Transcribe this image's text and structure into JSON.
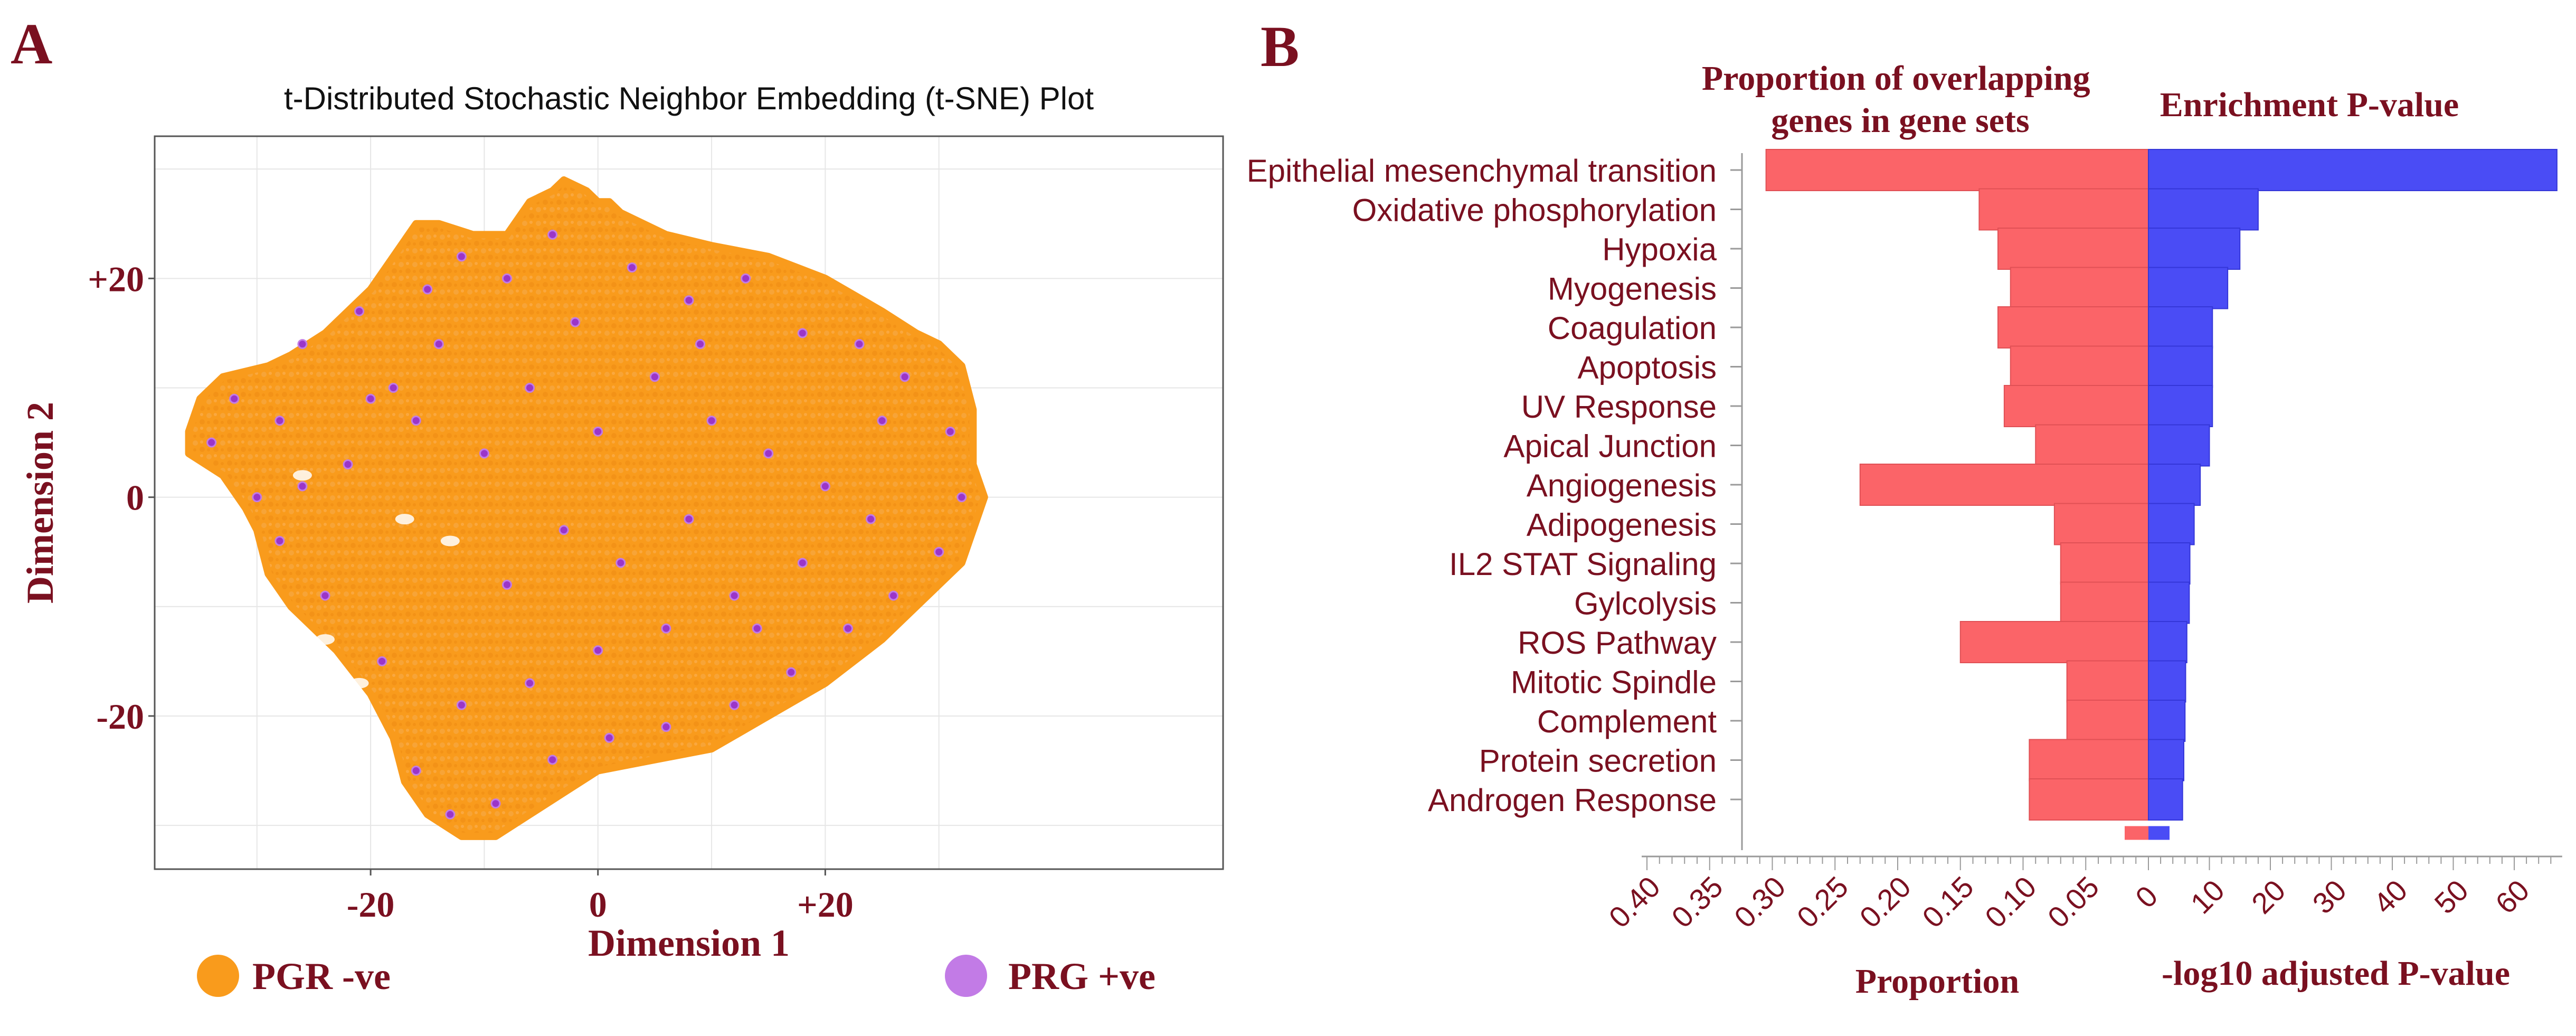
{
  "figure": {
    "panel_a_letter": "A",
    "panel_b_letter": "B",
    "colors": {
      "label": "#7a1020",
      "pgr_neg": "#f99b1c",
      "prg_pos": "#c27be6",
      "prg_pos_dot": "#9b35c8",
      "proportion_bar": "#fb6468",
      "pvalue_bar": "#4a4cf5"
    }
  },
  "chart_data": [
    {
      "type": "scatter",
      "title": "t-Distributed Stochastic Neighbor Embedding (t-SNE) Plot",
      "xlabel": "Dimension 1",
      "ylabel": "Dimension 2",
      "xlim": [
        -39,
        55
      ],
      "ylim": [
        -34,
        33
      ],
      "x_ticks": [
        {
          "value": -20,
          "label": "-20"
        },
        {
          "value": 0,
          "label": "0"
        },
        {
          "value": 20,
          "label": "+20"
        }
      ],
      "y_ticks": [
        {
          "value": 20,
          "label": "+20"
        },
        {
          "value": 0,
          "label": "0"
        },
        {
          "value": -20,
          "label": "-20"
        }
      ],
      "grid": true,
      "legend": [
        {
          "name": "PGR -ve",
          "color": "#f99b1c"
        },
        {
          "name": "PRG +ve",
          "color": "#c27be6"
        }
      ],
      "legend_position": "bottom",
      "series": [
        {
          "name": "PGR -ve",
          "color": "#f99b1c",
          "cloud": true,
          "boundary": [
            [
              -35,
              9
            ],
            [
              -33,
              11
            ],
            [
              -29,
              12
            ],
            [
              -27,
              13
            ],
            [
              -24,
              15
            ],
            [
              -23,
              16
            ],
            [
              -20,
              19
            ],
            [
              -18,
              22
            ],
            [
              -16,
              25
            ],
            [
              -14,
              25
            ],
            [
              -11,
              24
            ],
            [
              -8,
              24
            ],
            [
              -6,
              27
            ],
            [
              -4,
              28
            ],
            [
              -3,
              29
            ],
            [
              -1,
              28
            ],
            [
              0,
              27
            ],
            [
              1,
              27
            ],
            [
              2,
              26
            ],
            [
              6,
              24
            ],
            [
              10,
              23
            ],
            [
              15,
              22
            ],
            [
              20,
              20
            ],
            [
              25,
              17
            ],
            [
              28,
              15
            ],
            [
              30,
              14
            ],
            [
              32,
              12
            ],
            [
              33,
              8
            ],
            [
              33,
              3
            ],
            [
              34,
              0
            ],
            [
              33,
              -3
            ],
            [
              32,
              -6
            ],
            [
              29,
              -9
            ],
            [
              25,
              -13
            ],
            [
              20,
              -17
            ],
            [
              15,
              -20
            ],
            [
              10,
              -23
            ],
            [
              5,
              -24
            ],
            [
              0,
              -25
            ],
            [
              -3,
              -27
            ],
            [
              -6,
              -29
            ],
            [
              -9,
              -31
            ],
            [
              -12,
              -31
            ],
            [
              -15,
              -29
            ],
            [
              -17,
              -26
            ],
            [
              -18,
              -22
            ],
            [
              -20,
              -18
            ],
            [
              -23,
              -14
            ],
            [
              -27,
              -10
            ],
            [
              -29,
              -7
            ],
            [
              -30,
              -3
            ],
            [
              -31,
              -1
            ],
            [
              -33,
              2
            ],
            [
              -36,
              4
            ],
            [
              -36,
              6
            ]
          ],
          "notches": [
            [
              -26,
              2
            ],
            [
              -17,
              -2
            ],
            [
              -13,
              -4
            ],
            [
              -24,
              -13
            ],
            [
              -21,
              -17
            ]
          ]
        },
        {
          "name": "PRG +ve",
          "color": "#9b35c8",
          "points": [
            [
              -34,
              5
            ],
            [
              -32,
              9
            ],
            [
              -28,
              7
            ],
            [
              -26,
              14
            ],
            [
              -21,
              17
            ],
            [
              -18,
              10
            ],
            [
              -15,
              19
            ],
            [
              -12,
              22
            ],
            [
              -8,
              20
            ],
            [
              -4,
              24
            ],
            [
              -2,
              16
            ],
            [
              3,
              21
            ],
            [
              8,
              18
            ],
            [
              13,
              20
            ],
            [
              18,
              15
            ],
            [
              23,
              14
            ],
            [
              27,
              11
            ],
            [
              31,
              6
            ],
            [
              32,
              0
            ],
            [
              30,
              -5
            ],
            [
              26,
              -9
            ],
            [
              22,
              -12
            ],
            [
              17,
              -16
            ],
            [
              12,
              -19
            ],
            [
              6,
              -21
            ],
            [
              1,
              -22
            ],
            [
              -4,
              -24
            ],
            [
              -9,
              -28
            ],
            [
              -13,
              -29
            ],
            [
              -16,
              -25
            ],
            [
              -19,
              -15
            ],
            [
              -24,
              -9
            ],
            [
              -28,
              -4
            ],
            [
              -30,
              0
            ],
            [
              -22,
              3
            ],
            [
              -16,
              7
            ],
            [
              -10,
              4
            ],
            [
              -6,
              10
            ],
            [
              0,
              6
            ],
            [
              5,
              11
            ],
            [
              10,
              7
            ],
            [
              15,
              4
            ],
            [
              20,
              1
            ],
            [
              24,
              -2
            ],
            [
              18,
              -6
            ],
            [
              12,
              -9
            ],
            [
              6,
              -12
            ],
            [
              0,
              -14
            ],
            [
              -6,
              -17
            ],
            [
              -12,
              -19
            ],
            [
              -8,
              -8
            ],
            [
              -3,
              -3
            ],
            [
              2,
              -6
            ],
            [
              8,
              -2
            ],
            [
              14,
              -12
            ],
            [
              -14,
              14
            ],
            [
              -20,
              9
            ],
            [
              -26,
              1
            ],
            [
              25,
              7
            ],
            [
              9,
              14
            ]
          ]
        }
      ]
    },
    {
      "type": "bar",
      "orientation": "horizontal",
      "header_left": "Proportion of overlapping genes in gene sets",
      "header_right": "Enrichment P-value",
      "categories": [
        "Epithelial mesenchymal transition",
        "Oxidative phosphorylation",
        "Hypoxia",
        "Myogenesis",
        "Coagulation",
        "Apoptosis",
        "UV Response",
        "Apical Junction",
        "Angiogenesis",
        "Adipogenesis",
        "IL2 STAT Signaling",
        "Gylcolysis",
        "ROS Pathway",
        "Mitotic Spindle",
        "Complement",
        "Protein secretion",
        "Androgen Response"
      ],
      "series": [
        {
          "name": "Proportion",
          "color": "#fb6468",
          "values": [
            0.305,
            0.135,
            0.12,
            0.11,
            0.12,
            0.11,
            0.115,
            0.09,
            0.23,
            0.075,
            0.07,
            0.07,
            0.15,
            0.065,
            0.065,
            0.095,
            0.095
          ]
        },
        {
          "name": "-log10 adjusted P-value",
          "color": "#4a4cf5",
          "values": [
            67,
            18,
            15,
            13,
            10.5,
            10.5,
            10.5,
            10,
            8.5,
            7.5,
            6.8,
            6.7,
            6.3,
            6.1,
            6,
            5.8,
            5.6
          ]
        }
      ],
      "left_axis": {
        "label": "Proportion",
        "range": [
          0,
          0.4
        ],
        "ticks": [
          {
            "value": 0.4,
            "label": "0.40"
          },
          {
            "value": 0.35,
            "label": "0.35"
          },
          {
            "value": 0.3,
            "label": "0.30"
          },
          {
            "value": 0.25,
            "label": "0.25"
          },
          {
            "value": 0.2,
            "label": "0.20"
          },
          {
            "value": 0.15,
            "label": "0.15"
          },
          {
            "value": 0.1,
            "label": "0.10"
          },
          {
            "value": 0.05,
            "label": "0.05"
          }
        ]
      },
      "right_axis": {
        "label": "-log10 adjusted P-value",
        "range": [
          0,
          67
        ],
        "ticks": [
          {
            "value": 0,
            "label": "0"
          },
          {
            "value": 10,
            "label": "10"
          },
          {
            "value": 20,
            "label": "20"
          },
          {
            "value": 30,
            "label": "30"
          },
          {
            "value": 40,
            "label": "40"
          },
          {
            "value": 50,
            "label": "50"
          },
          {
            "value": 60,
            "label": "60"
          }
        ]
      }
    }
  ]
}
